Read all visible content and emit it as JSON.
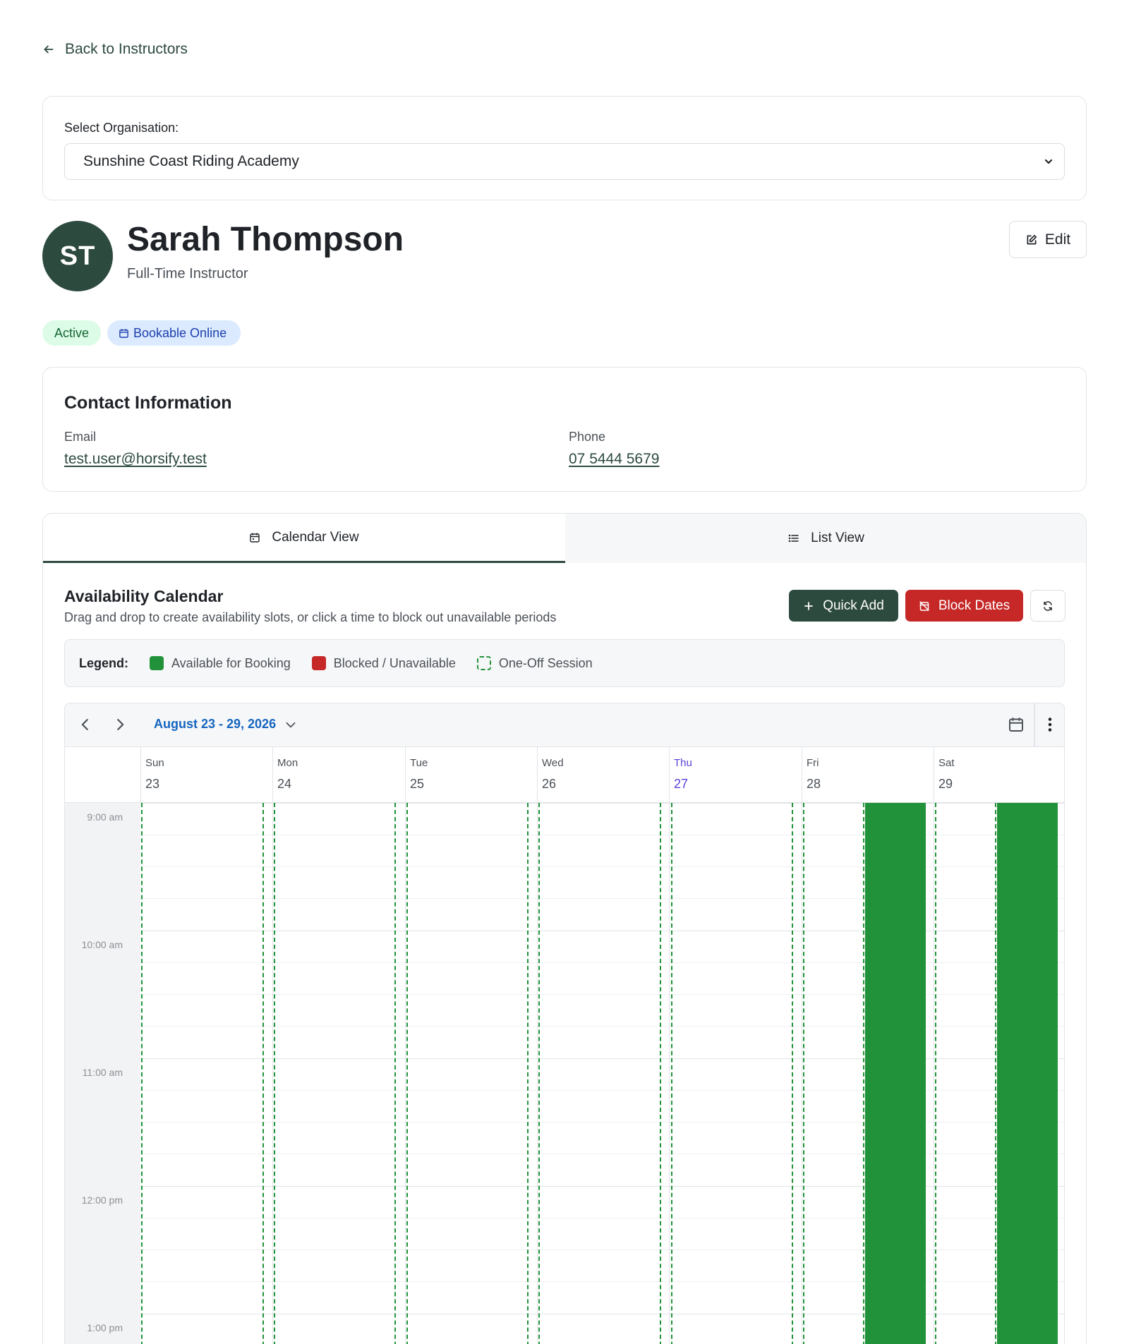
{
  "back_link": {
    "label": "Back to Instructors",
    "icon": "arrow-left-icon"
  },
  "organisation": {
    "label": "Select Organisation:",
    "selected": "Sunshine Coast Riding Academy"
  },
  "profile": {
    "initials": "ST",
    "name": "Sarah Thompson",
    "role": "Full-Time Instructor",
    "edit_label": "Edit",
    "badges": {
      "status": "Active",
      "bookable": "Bookable Online"
    }
  },
  "contact": {
    "title": "Contact Information",
    "email_label": "Email",
    "email": "test.user@horsify.test",
    "phone_label": "Phone",
    "phone": "07 5444 5679"
  },
  "tabs": {
    "calendar": "Calendar View",
    "list": "List View"
  },
  "availability": {
    "title": "Availability Calendar",
    "subtitle": "Drag and drop to create availability slots, or click a time to block out unavailable periods",
    "quick_add": "Quick Add",
    "block_dates": "Block Dates"
  },
  "legend": {
    "label": "Legend:",
    "available": "Available for Booking",
    "blocked": "Blocked / Unavailable",
    "one_off": "One-Off Session"
  },
  "calendar": {
    "range": "August 23 - 29, 2026",
    "days": [
      {
        "name": "Sun",
        "num": "23"
      },
      {
        "name": "Mon",
        "num": "24"
      },
      {
        "name": "Tue",
        "num": "25"
      },
      {
        "name": "Wed",
        "num": "26"
      },
      {
        "name": "Thu",
        "num": "27"
      },
      {
        "name": "Fri",
        "num": "28"
      },
      {
        "name": "Sat",
        "num": "29"
      }
    ],
    "today": "Thu",
    "times": [
      "9:00 am",
      "10:00 am",
      "11:00 am",
      "12:00 pm",
      "1:00 pm"
    ]
  },
  "colors": {
    "brand": "#2d4a3e",
    "available": "#22923a",
    "blocked": "#c62828",
    "today": "#5b3fd9",
    "link": "#1565c0"
  }
}
